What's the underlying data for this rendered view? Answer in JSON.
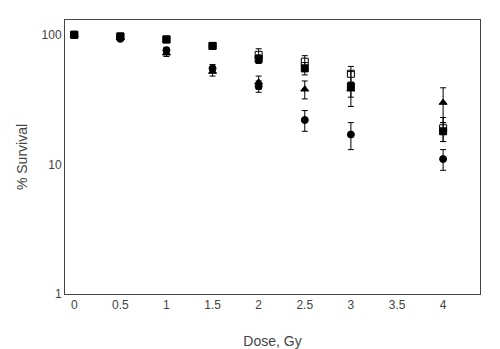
{
  "chart_data": {
    "type": "scatter",
    "xlabel": "Dose, Gy",
    "ylabel": "% Survival",
    "x": [
      0,
      0.5,
      1,
      1.5,
      2,
      2.5,
      3,
      4
    ],
    "series": [
      {
        "color": "black",
        "marker": "square-open",
        "values": [
          100,
          97,
          92,
          82,
          70,
          62,
          50,
          19
        ],
        "errors": [
          1,
          2,
          3,
          3,
          8,
          7,
          7,
          4
        ]
      },
      {
        "color": "black",
        "marker": "circle",
        "values": [
          100,
          93,
          76,
          55,
          40,
          22,
          17,
          11
        ],
        "errors": [
          1,
          3,
          4,
          4,
          4,
          4,
          4,
          2
        ]
      },
      {
        "color": "black",
        "marker": "square",
        "values": [
          100,
          97,
          92,
          82,
          65,
          55,
          40,
          18
        ],
        "errors": [
          1,
          2,
          3,
          3,
          5,
          6,
          12,
          3
        ]
      },
      {
        "color": "black",
        "marker": "triangle-up",
        "values": [
          100,
          95,
          72,
          52,
          43,
          38,
          38,
          30
        ],
        "errors": [
          1,
          3,
          4,
          4,
          5,
          6,
          5,
          9
        ]
      }
    ],
    "log": "y",
    "xlim": [
      -0.1,
      4.4
    ],
    "xticks": [
      0,
      0.5,
      1,
      1.5,
      2,
      2.5,
      3,
      3.5,
      4
    ],
    "ylim": [
      1,
      130
    ],
    "yticks": [
      1,
      10,
      100
    ],
    "grid": false
  }
}
